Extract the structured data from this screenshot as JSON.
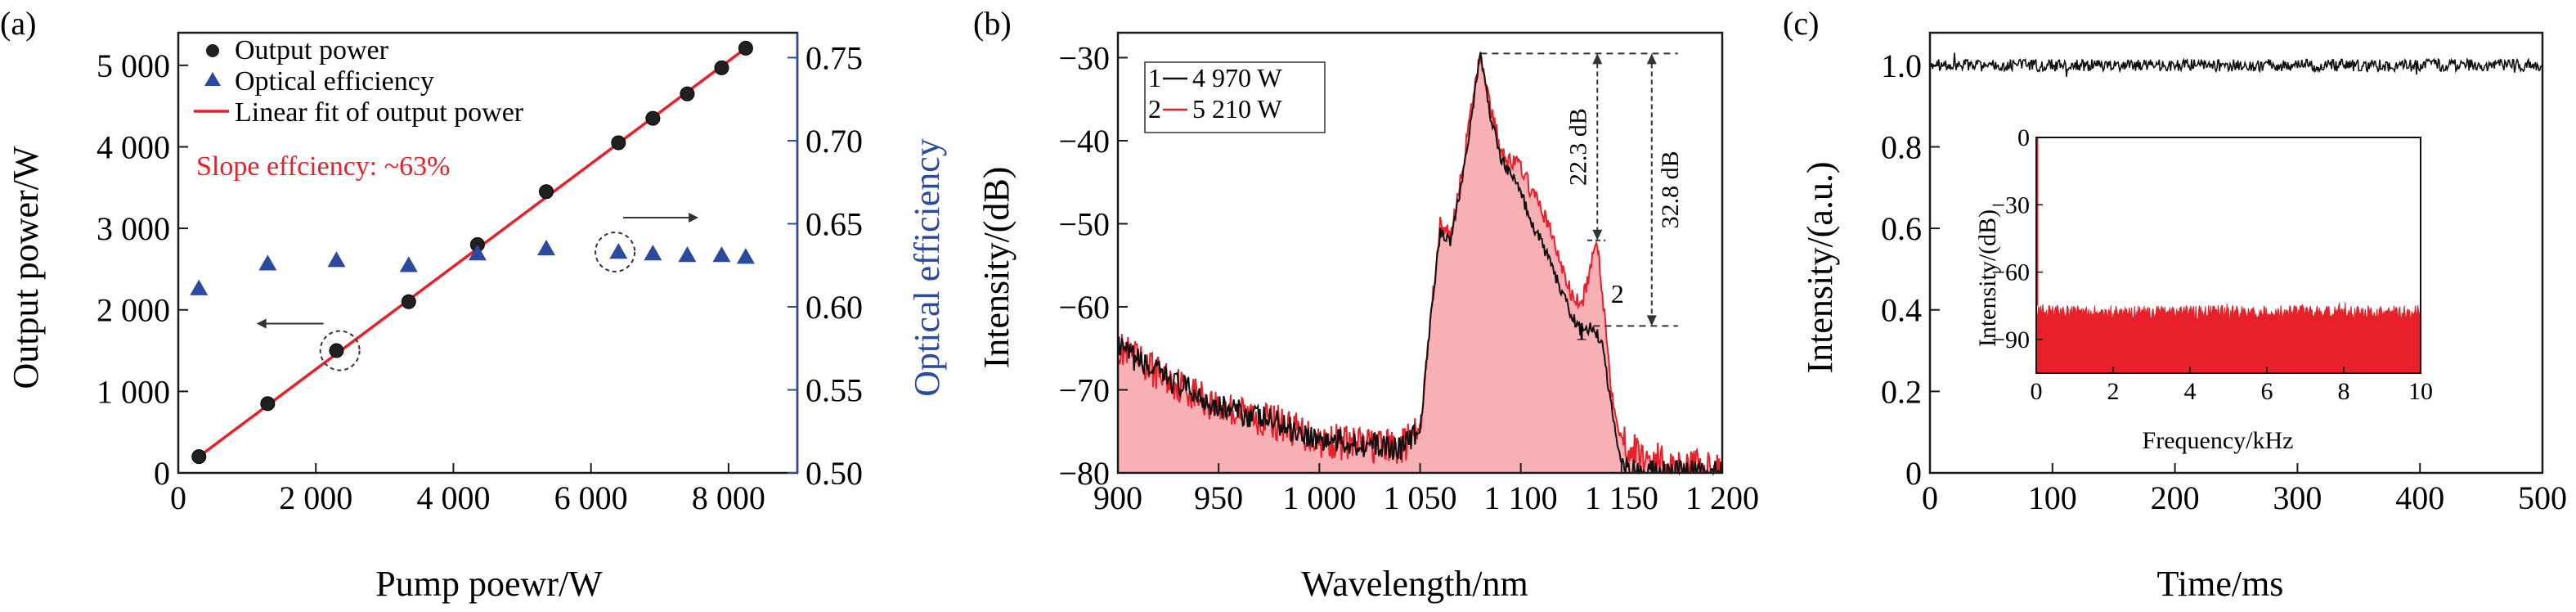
{
  "colors": {
    "black": "#1a1a1a",
    "red": "#e8202a",
    "blue": "#2b4a9e",
    "fill_red": "#e8202a"
  },
  "panels": {
    "a": {
      "label": "(a)",
      "xlabel": "Pump poewr/W",
      "ylabel": "Output power/W",
      "ylabel_right": "Optical efficiency",
      "annotation": "Slope effciency: ~63%"
    },
    "b": {
      "label": "(b)",
      "xlabel": "Wavelength/nm",
      "ylabel": "Intensity/(dB)",
      "annotations": [
        "22.3 dB",
        "32.8 dB",
        "1",
        "2"
      ]
    },
    "c": {
      "label": "(c)",
      "xlabel": "Time/ms",
      "ylabel": "Intensity/(a.u.)",
      "inset_xlabel": "Frequency/kHz",
      "inset_ylabel": "Intensity/(dB)"
    }
  },
  "chart_data": [
    {
      "panel": "a",
      "type": "scatter",
      "xlabel": "Pump poewr/W",
      "ylabel": "Output power/W",
      "ylabel_right": "Optical efficiency",
      "xlim": [
        0,
        9000
      ],
      "ylim": [
        0,
        5400
      ],
      "ylim_right": [
        0.5,
        0.765
      ],
      "x_ticks": [
        0,
        2000,
        4000,
        6000,
        8000
      ],
      "x_tick_labels": [
        "0",
        "2 000",
        "4 000",
        "6 000",
        "8 000"
      ],
      "y_ticks": [
        0,
        1000,
        2000,
        3000,
        4000,
        5000
      ],
      "y_tick_labels": [
        "0",
        "1 000",
        "2 000",
        "3 000",
        "4 000",
        "5 000"
      ],
      "y_right_ticks": [
        0.5,
        0.55,
        0.6,
        0.65,
        0.7,
        0.75
      ],
      "y_right_tick_labels": [
        "0.50",
        "0.55",
        "0.60",
        "0.65",
        "0.70",
        "0.75"
      ],
      "legend": [
        "Output power",
        "Optical efficiency",
        "Linear fit of output power"
      ],
      "legend_position": "top-left",
      "series": [
        {
          "name": "Output power",
          "axis": "left",
          "marker": "circle",
          "x": [
            300,
            1300,
            2300,
            3350,
            4350,
            5350,
            6400,
            6900,
            7400,
            7900,
            8250
          ],
          "y": [
            200,
            850,
            1500,
            2100,
            2800,
            3450,
            4050,
            4350,
            4650,
            4970,
            5210
          ]
        },
        {
          "name": "Optical efficiency",
          "axis": "right",
          "marker": "triangle",
          "x": [
            300,
            1300,
            2300,
            3350,
            4350,
            5350,
            6400,
            6900,
            7400,
            7900,
            8250
          ],
          "y": [
            0.611,
            0.626,
            0.628,
            0.625,
            0.632,
            0.635,
            0.633,
            0.632,
            0.631,
            0.631,
            0.63
          ]
        },
        {
          "name": "Linear fit of output power",
          "axis": "left",
          "marker": "line",
          "x": [
            300,
            8250
          ],
          "y": [
            200,
            5210
          ]
        }
      ],
      "annotations": [
        {
          "text": "Slope effciency: ~63%"
        },
        {
          "arrow": "left",
          "circle_at": [
            2350,
            1500
          ]
        },
        {
          "arrow": "right",
          "circle_at": [
            6350,
            0.633
          ]
        }
      ]
    },
    {
      "panel": "b",
      "type": "line",
      "xlabel": "Wavelength/nm",
      "ylabel": "Intensity/(dB)",
      "xlim": [
        900,
        1200
      ],
      "ylim": [
        -80,
        -27
      ],
      "x_ticks": [
        900,
        950,
        1000,
        1050,
        1100,
        1150,
        1200
      ],
      "x_tick_labels": [
        "900",
        "950",
        "1 000",
        "1 050",
        "1 100",
        "1 150",
        "1 200"
      ],
      "y_ticks": [
        -80,
        -70,
        -60,
        -50,
        -40,
        -30
      ],
      "y_tick_labels": [
        "−80",
        "−70",
        "−60",
        "−50",
        "−40",
        "−30"
      ],
      "legend": [
        "1",
        "—4 970 W",
        "2",
        "—5 210 W"
      ],
      "legend_position": "top-left",
      "series": [
        {
          "name": "4 970 W",
          "color": "black",
          "x": [
            900,
            920,
            950,
            980,
            1000,
            1020,
            1040,
            1050,
            1055,
            1060,
            1065,
            1070,
            1075,
            1080,
            1085,
            1090,
            1095,
            1100,
            1105,
            1110,
            1115,
            1120,
            1125,
            1130,
            1135,
            1140,
            1145,
            1150,
            1160,
            1180,
            1200
          ],
          "y": [
            -65,
            -68,
            -72,
            -74,
            -76,
            -76.5,
            -77,
            -75,
            -62,
            -51,
            -52,
            -46,
            -38,
            -29.5,
            -37,
            -42,
            -44,
            -46,
            -50,
            -52,
            -55,
            -58,
            -61,
            -63,
            -62.5,
            -64,
            -72,
            -79,
            -80,
            -80,
            -80
          ]
        },
        {
          "name": "5 210 W",
          "color": "red",
          "x": [
            900,
            920,
            950,
            980,
            1000,
            1020,
            1040,
            1050,
            1055,
            1060,
            1065,
            1070,
            1075,
            1080,
            1085,
            1090,
            1095,
            1100,
            1105,
            1110,
            1115,
            1120,
            1125,
            1130,
            1135,
            1138,
            1140,
            1145,
            1150,
            1160,
            1180,
            1200
          ],
          "y": [
            -65,
            -68,
            -72,
            -74,
            -76,
            -76.5,
            -77,
            -75,
            -62,
            -50,
            -51.5,
            -45,
            -37,
            -29.5,
            -36,
            -41,
            -42.5,
            -43,
            -46,
            -48,
            -51,
            -55,
            -58.5,
            -60,
            -55,
            -52,
            -57,
            -70,
            -76,
            -78,
            -79,
            -80
          ]
        }
      ],
      "annotations": [
        {
          "text": "22.3 dB",
          "from": -29.5,
          "to": -52
        },
        {
          "text": "32.8 dB",
          "from": -29.5,
          "to": -62.3
        },
        {
          "text": "1",
          "at": [
            1130,
            -64
          ]
        },
        {
          "text": "2",
          "at": [
            1148,
            -59.5
          ]
        }
      ]
    },
    {
      "panel": "c",
      "type": "line",
      "xlabel": "Time/ms",
      "ylabel": "Intensity/(a.u.)",
      "xlim": [
        0,
        500
      ],
      "ylim": [
        0,
        1.08
      ],
      "x_ticks": [
        0,
        100,
        200,
        300,
        400,
        500
      ],
      "x_tick_labels": [
        "0",
        "100",
        "200",
        "300",
        "400",
        "500"
      ],
      "y_ticks": [
        0,
        0.2,
        0.4,
        0.6,
        0.8,
        1.0
      ],
      "y_tick_labels": [
        "0",
        "0.2",
        "0.4",
        "0.6",
        "0.8",
        "1.0"
      ],
      "series": [
        {
          "name": "",
          "mean": 1.0,
          "noise_amplitude": 0.02,
          "color": "black"
        }
      ],
      "inset": {
        "type": "area",
        "xlabel": "Frequency/kHz",
        "ylabel": "Intensity/(dB)",
        "xlim": [
          0,
          10
        ],
        "ylim": [
          -105,
          0
        ],
        "x_ticks": [
          0,
          2,
          4,
          6,
          8,
          10
        ],
        "x_tick_labels": [
          "0",
          "2",
          "4",
          "6",
          "8",
          "10"
        ],
        "y_ticks": [
          0,
          -30,
          -60,
          -90
        ],
        "y_tick_labels": [
          "0",
          "−30",
          "−60",
          "−90"
        ],
        "series": [
          {
            "name": "",
            "mean": -78,
            "noise_amplitude": 4,
            "color": "red"
          }
        ]
      }
    }
  ]
}
